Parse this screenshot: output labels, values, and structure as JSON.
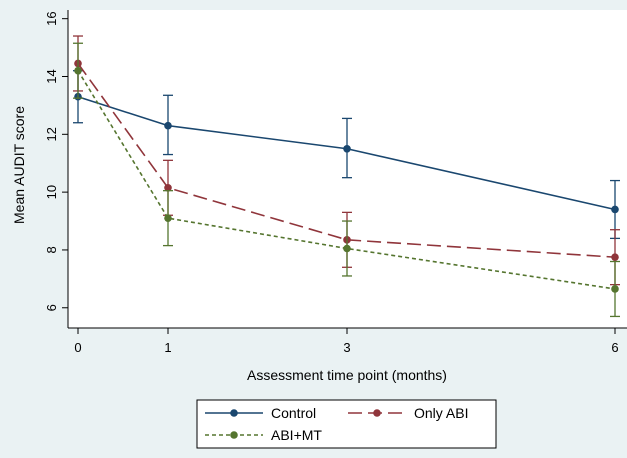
{
  "chart_data": {
    "type": "line",
    "title": "",
    "xlabel": "Assessment time point (months)",
    "ylabel": "Mean AUDIT score",
    "x_ticks": [
      "0",
      "1",
      "3",
      "6"
    ],
    "y_ticks": [
      "6",
      "8",
      "10",
      "12",
      "14",
      "16"
    ],
    "x_categories": [
      0,
      1,
      3,
      6
    ],
    "ylim": [
      5.3,
      16.3
    ],
    "grid": false,
    "legend_position": "bottom",
    "series": [
      {
        "name": "Control",
        "color": "#1a476f",
        "line_style": "solid",
        "values": [
          13.3,
          12.3,
          11.5,
          9.4
        ],
        "ci_low": [
          12.4,
          11.3,
          10.5,
          8.4
        ],
        "ci_high": [
          14.2,
          13.35,
          12.55,
          10.4
        ]
      },
      {
        "name": "Only ABI",
        "color": "#90353b",
        "line_style": "long-dash",
        "values": [
          14.45,
          10.15,
          8.35,
          7.75
        ],
        "ci_low": [
          13.5,
          9.2,
          7.4,
          6.8
        ],
        "ci_high": [
          15.4,
          11.1,
          9.3,
          8.7
        ]
      },
      {
        "name": "ABI+MT",
        "color": "#55752f",
        "line_style": "short-dash",
        "values": [
          14.2,
          9.1,
          8.05,
          6.65
        ],
        "ci_low": [
          13.25,
          8.15,
          7.1,
          5.7
        ],
        "ci_high": [
          15.15,
          10.05,
          9.0,
          7.6
        ]
      }
    ]
  }
}
